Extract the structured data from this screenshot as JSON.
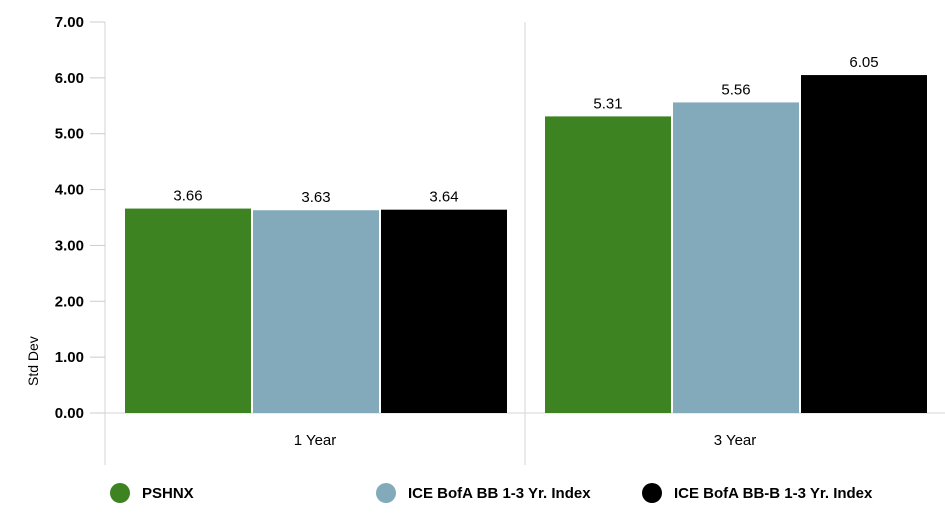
{
  "chart_data": {
    "type": "bar",
    "title": "",
    "xlabel": "",
    "ylabel": "Std Dev",
    "ylim": [
      0,
      7
    ],
    "yticks": [
      "0.00",
      "1.00",
      "2.00",
      "3.00",
      "4.00",
      "5.00",
      "6.00",
      "7.00"
    ],
    "categories": [
      "1 Year",
      "3 Year"
    ],
    "series": [
      {
        "name": "PSHNX",
        "color": "#3e8321",
        "values": [
          3.66,
          5.31
        ],
        "labels": [
          "3.66",
          "5.31"
        ]
      },
      {
        "name": "ICE BofA BB 1-3 Yr. Index",
        "color": "#82aabb",
        "values": [
          3.63,
          5.56
        ],
        "labels": [
          "3.63",
          "5.56"
        ]
      },
      {
        "name": "ICE BofA BB-B 1-3 Yr. Index",
        "color": "#000000",
        "values": [
          3.64,
          6.05
        ],
        "labels": [
          "3.64",
          "6.05"
        ]
      }
    ],
    "grid": "vertical",
    "legend_position": "bottom"
  }
}
